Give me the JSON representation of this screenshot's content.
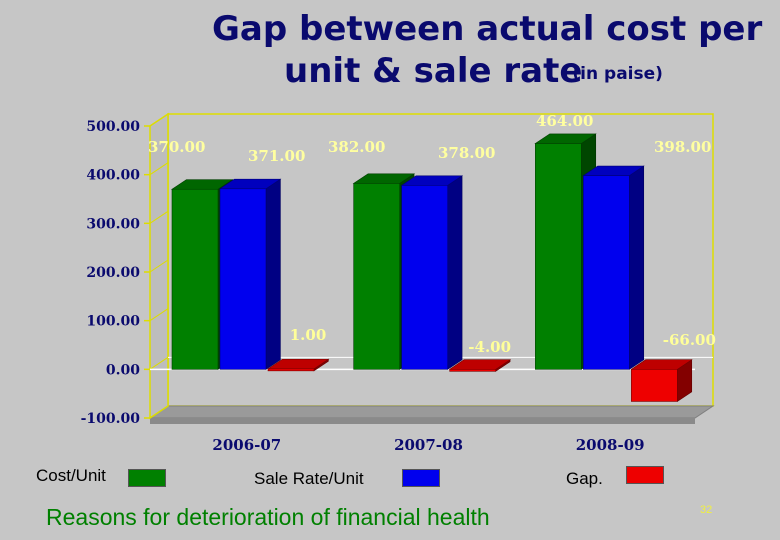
{
  "slide": {
    "title_line1": "Gap between actual cost per",
    "title_line2": "unit & sale rate",
    "title_suffix": "(in paise)",
    "footer": "Reasons for deterioration of financial health",
    "page_number": "32"
  },
  "chart_data": {
    "type": "bar",
    "categories": [
      "2006-07",
      "2007-08",
      "2008-09"
    ],
    "series": [
      {
        "name": "Cost/Unit",
        "values": [
          370.0,
          382.0,
          464.0
        ],
        "labels": [
          "370.00",
          "382.00",
          "464.00"
        ],
        "color": "#008000"
      },
      {
        "name": "Sale Rate/Unit",
        "values": [
          371.0,
          378.0,
          398.0
        ],
        "labels": [
          "371.00",
          "378.00",
          "398.00"
        ],
        "color": "#0000ee"
      },
      {
        "name": "Gap.",
        "values": [
          1.0,
          -4.0,
          -66.0
        ],
        "labels": "1.00|-4.00|-66.00",
        "color": "#ee0000"
      }
    ],
    "ylim": [
      -100,
      500
    ],
    "yticks": [
      -100,
      0,
      100,
      200,
      300,
      400,
      500
    ],
    "ytick_labels": [
      "-100.00",
      "0.00",
      "100.00",
      "200.00",
      "300.00",
      "400.00",
      "500.00"
    ],
    "grid": false,
    "legend": "bottom",
    "data_label_color": "#ffff99",
    "axis_line_color": "#dddd00"
  }
}
